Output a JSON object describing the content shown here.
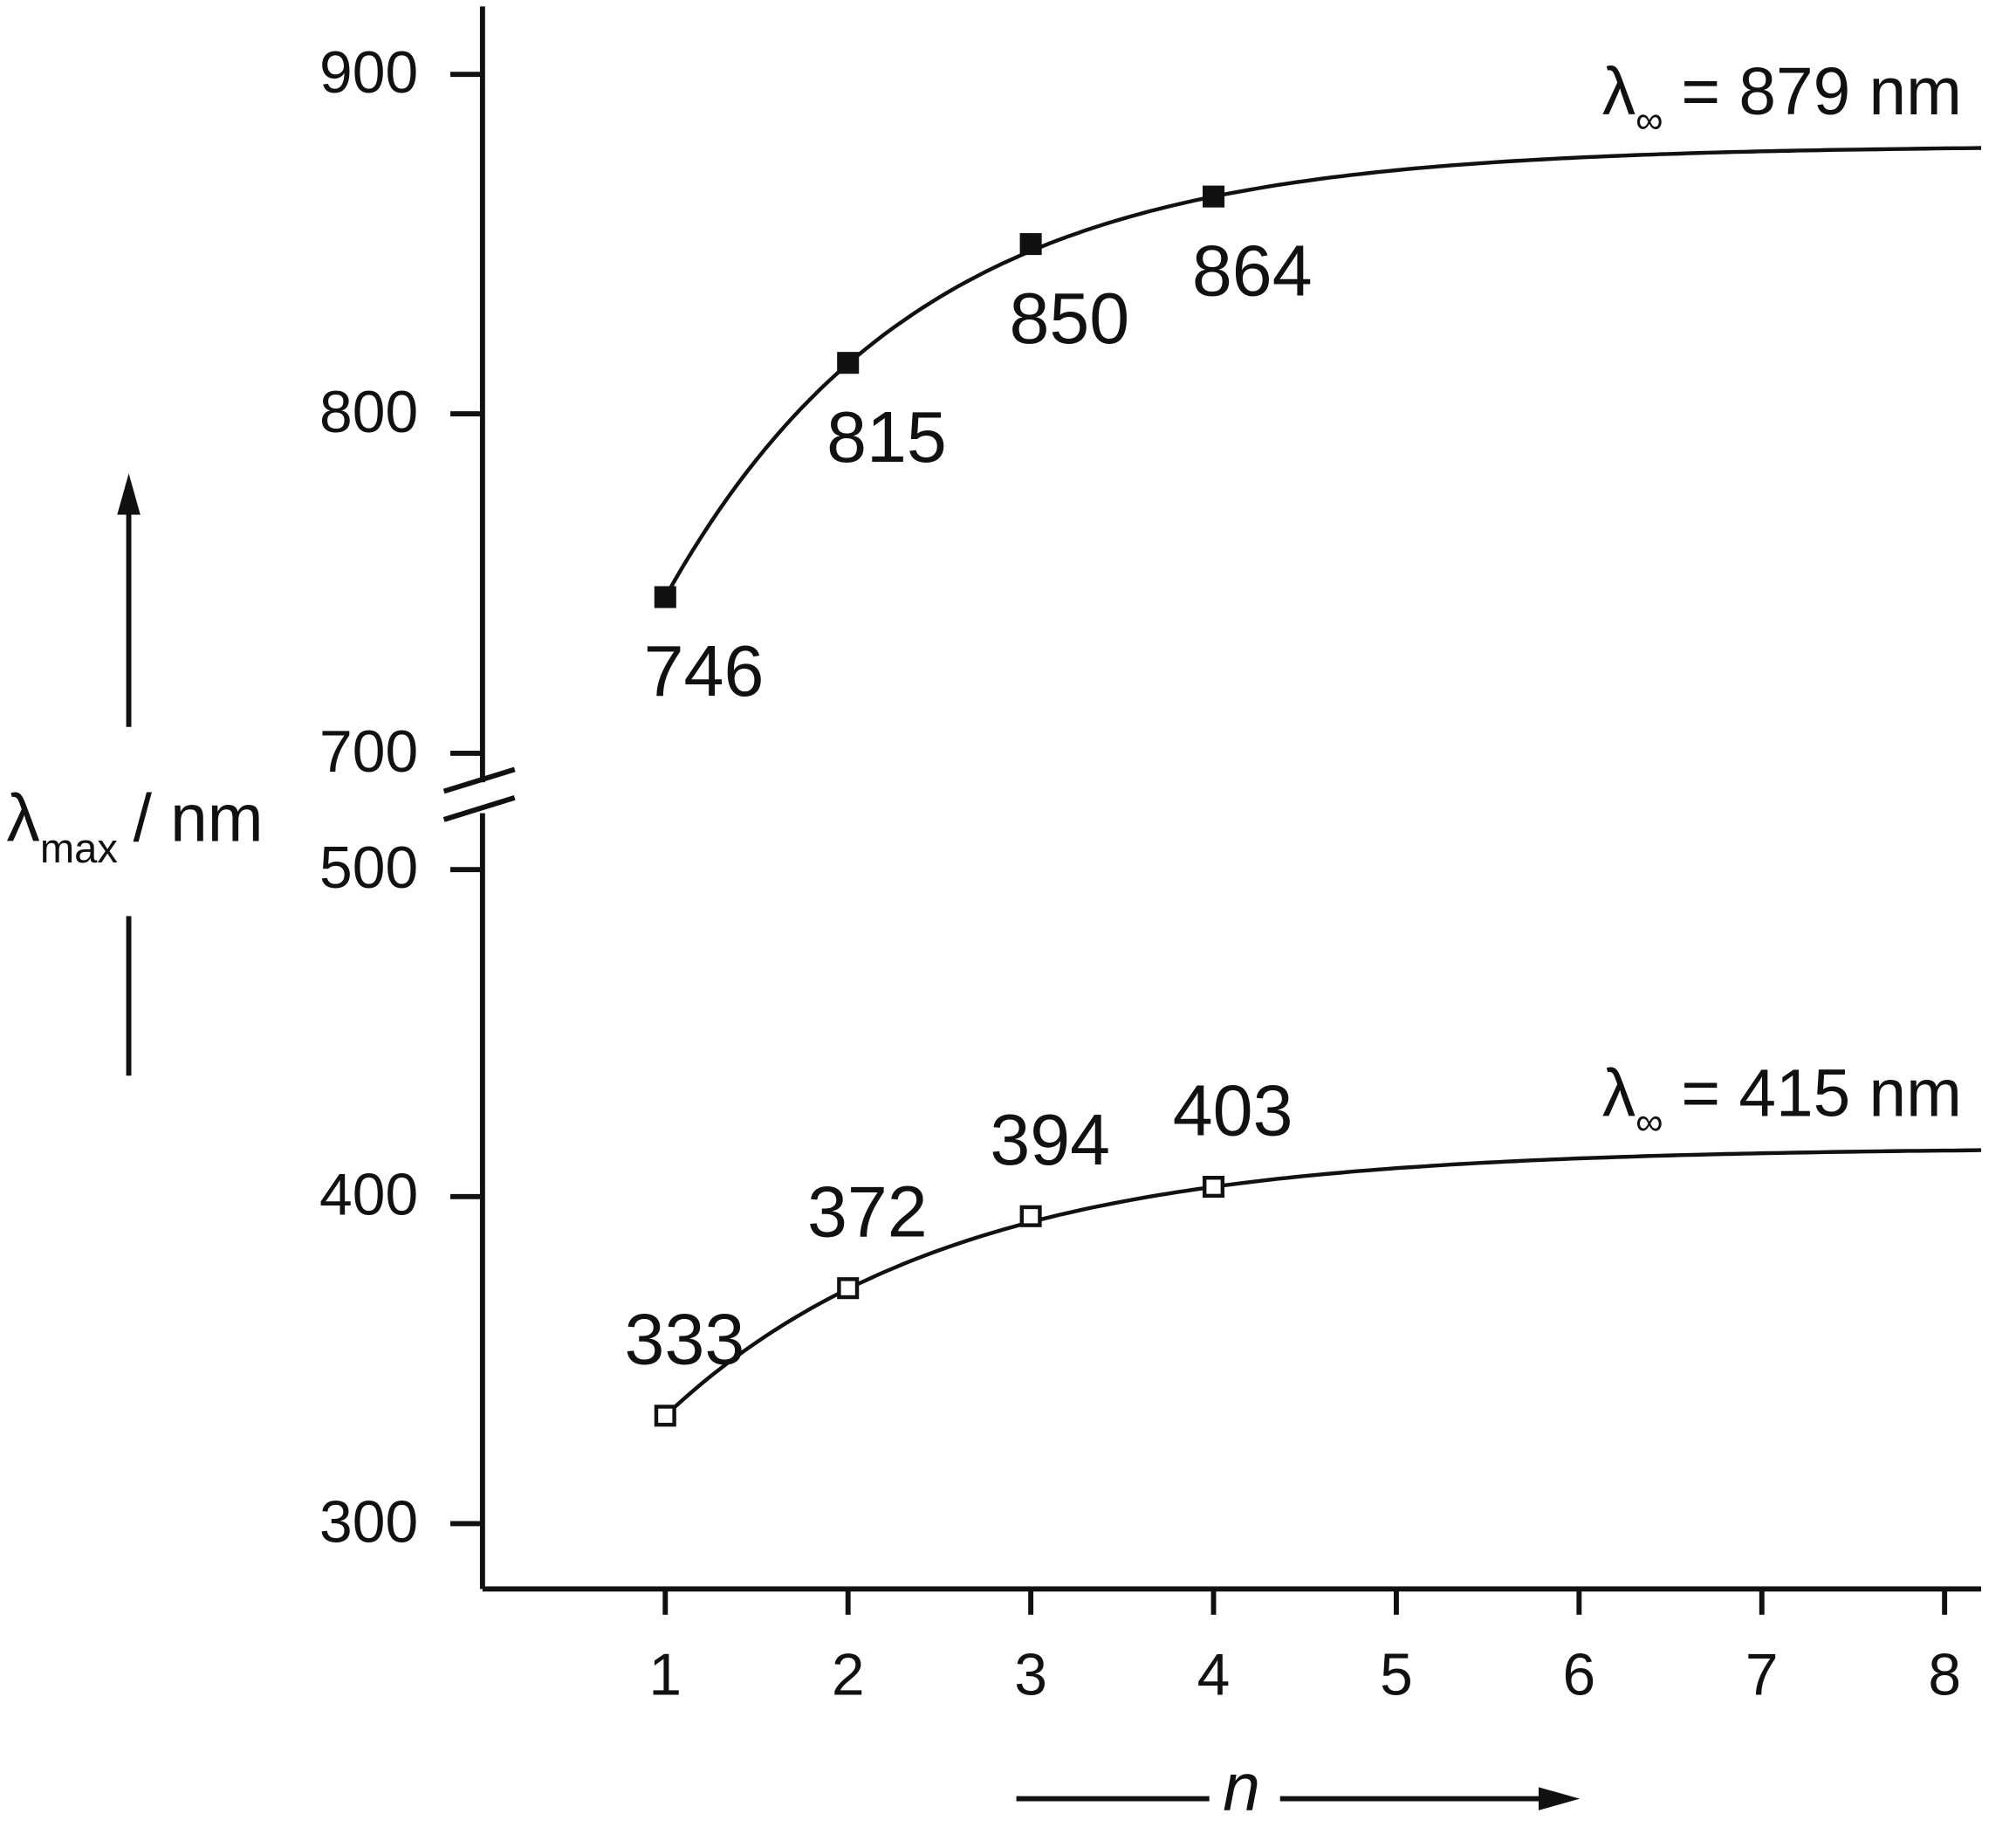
{
  "chart_data": {
    "type": "scatter",
    "y_label": {
      "symbol": "λ",
      "subscript": "max",
      "unit": "/ nm"
    },
    "x_label": "n",
    "x": [
      1,
      2,
      3,
      4
    ],
    "xlim": [
      0,
      8.2
    ],
    "xticks": [
      1,
      2,
      3,
      4,
      5,
      6,
      7,
      8
    ],
    "ylim": [
      280,
      920
    ],
    "y_break": [
      520,
      685
    ],
    "yticks": [
      300,
      400,
      500,
      700,
      800,
      900
    ],
    "series": [
      {
        "color": "#111111",
        "marker": "filled-square",
        "label_position": "below",
        "values": [
          746,
          815,
          850,
          864
        ],
        "asymptote": {
          "value": 879,
          "symbol": "λ",
          "subscript": "∞",
          "label": "= 879 nm"
        }
      },
      {
        "color": "#111111",
        "marker": "open-square",
        "label_position": "above",
        "values": [
          333,
          372,
          394,
          403
        ],
        "asymptote": {
          "value": 415,
          "symbol": "λ",
          "subscript": "∞",
          "label": "= 415 nm"
        }
      }
    ]
  }
}
